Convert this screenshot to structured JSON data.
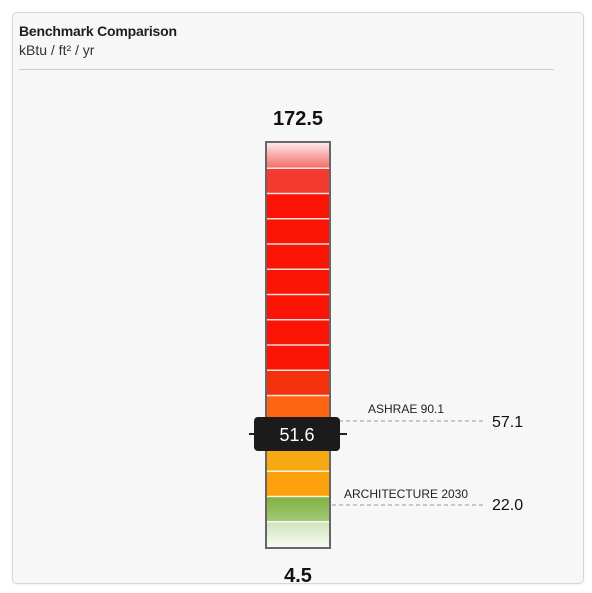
{
  "header": {
    "title": "Benchmark Comparison",
    "units": "kBtu / ft² / yr"
  },
  "chart_data": {
    "type": "gauge",
    "title": "Benchmark Comparison",
    "units": "kBtu / ft² / yr",
    "max": 172.5,
    "min": 4.5,
    "max_label": "172.5",
    "min_label": "4.5",
    "current": 51.6,
    "current_label": "51.6",
    "benchmarks": [
      {
        "name": "ASHRAE 90.1",
        "value": 57.1,
        "label": "57.1"
      },
      {
        "name": "ARCHITECTURE 2030",
        "value": 22.0,
        "label": "22.0"
      }
    ],
    "segments": [
      {
        "color": "#fde4e4"
      },
      {
        "color": "#f33c2f"
      },
      {
        "color": "#fb1305"
      },
      {
        "color": "#fb1305"
      },
      {
        "color": "#fb1305"
      },
      {
        "color": "#fb1305"
      },
      {
        "color": "#fb1305"
      },
      {
        "color": "#fb1305"
      },
      {
        "color": "#fb1305"
      },
      {
        "color": "#f4300d"
      },
      {
        "color": "#fe6512"
      },
      {
        "color": "#fb8d0b"
      },
      {
        "color": "#f7a914"
      },
      {
        "color": "#fca00c"
      },
      {
        "color": "#82b245"
      },
      {
        "color": "#e3eedb"
      }
    ]
  }
}
